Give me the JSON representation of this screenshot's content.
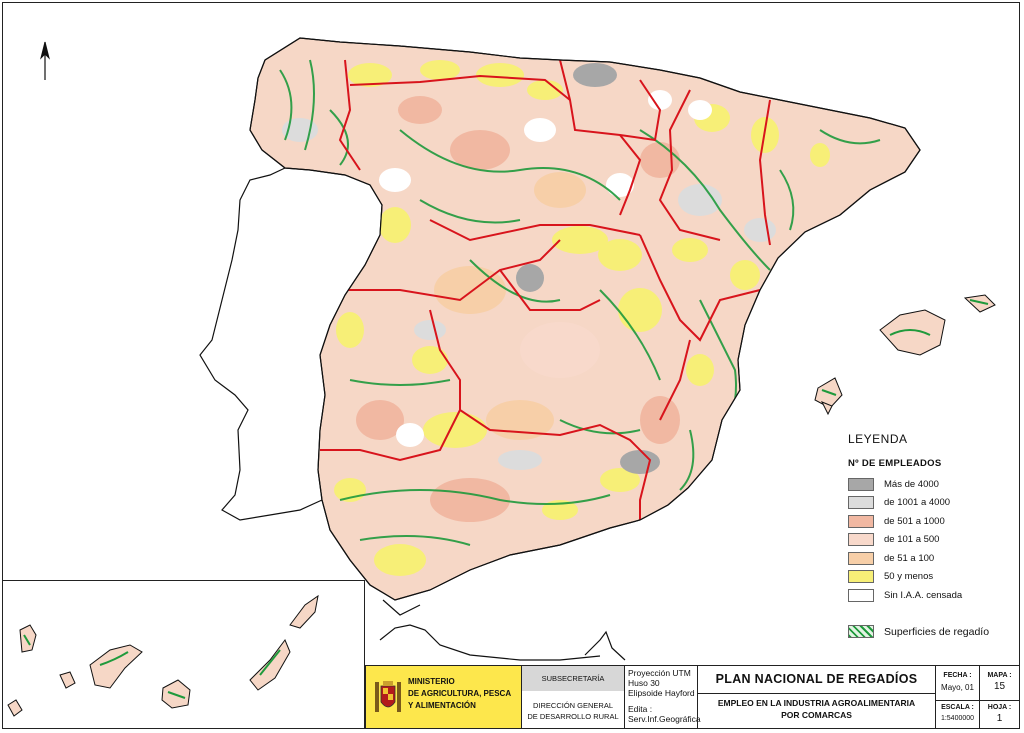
{
  "map": {
    "north_label": "N",
    "colors": {
      "land_base": "#f6d7c6",
      "border_red": "#d8141c",
      "irrigation_green": "#1f9a3c",
      "cat_gt4000": "#a7a7a7",
      "cat_1001_4000": "#dcdcdc",
      "cat_501_1000": "#f1b8a2",
      "cat_101_500": "#f8d9cb",
      "cat_51_100": "#f7cfa8",
      "cat_50_less": "#f7ef77",
      "cat_none": "#ffffff"
    }
  },
  "legend": {
    "title": "LEYENDA",
    "subtitle": "Nº DE EMPLEADOS",
    "items": [
      {
        "label": "Más  de 4000",
        "color": "#a7a7a7"
      },
      {
        "label": "de 1001 a 4000",
        "color": "#dcdcdc"
      },
      {
        "label": "de  501 a 1000",
        "color": "#f1b8a2"
      },
      {
        "label": "de  101 a  500",
        "color": "#f8d9cb"
      },
      {
        "label": "de   51 a 100",
        "color": "#f7cfa8"
      },
      {
        "label": "50 y menos",
        "color": "#f7ef77"
      },
      {
        "label": "Sin I.A.A. censada",
        "color": "#ffffff"
      }
    ],
    "irrigation_label": "Superficies de regadío"
  },
  "title_block": {
    "ministry_lines": [
      "MINISTERIO",
      "DE AGRICULTURA, PESCA",
      "Y ALIMENTACIÓN"
    ],
    "subsecretaria": "SUBSECRETARÍA",
    "direccion_lines": [
      "DIRECCIÓN GENERAL",
      "DE DESARROLLO RURAL"
    ],
    "projection_lines": [
      "Proyección UTM",
      "Huso 30",
      "Elipsoide Hayford"
    ],
    "edita_lines": [
      "Edita :",
      "Serv.Inf.Geográfica"
    ],
    "plan_title": "PLAN NACIONAL DE REGADÍOS",
    "map_title_lines": [
      "EMPLEO EN LA INDUSTRIA AGROALIMENTARIA",
      "POR COMARCAS"
    ],
    "fecha_label": "FECHA :",
    "fecha_value": "Mayo, 01",
    "escala_label": "ESCALA :",
    "escala_value": "1:5400000",
    "mapa_label": "MAPA :",
    "mapa_value": "15",
    "hoja_label": "HOJA :",
    "hoja_value": "1"
  }
}
